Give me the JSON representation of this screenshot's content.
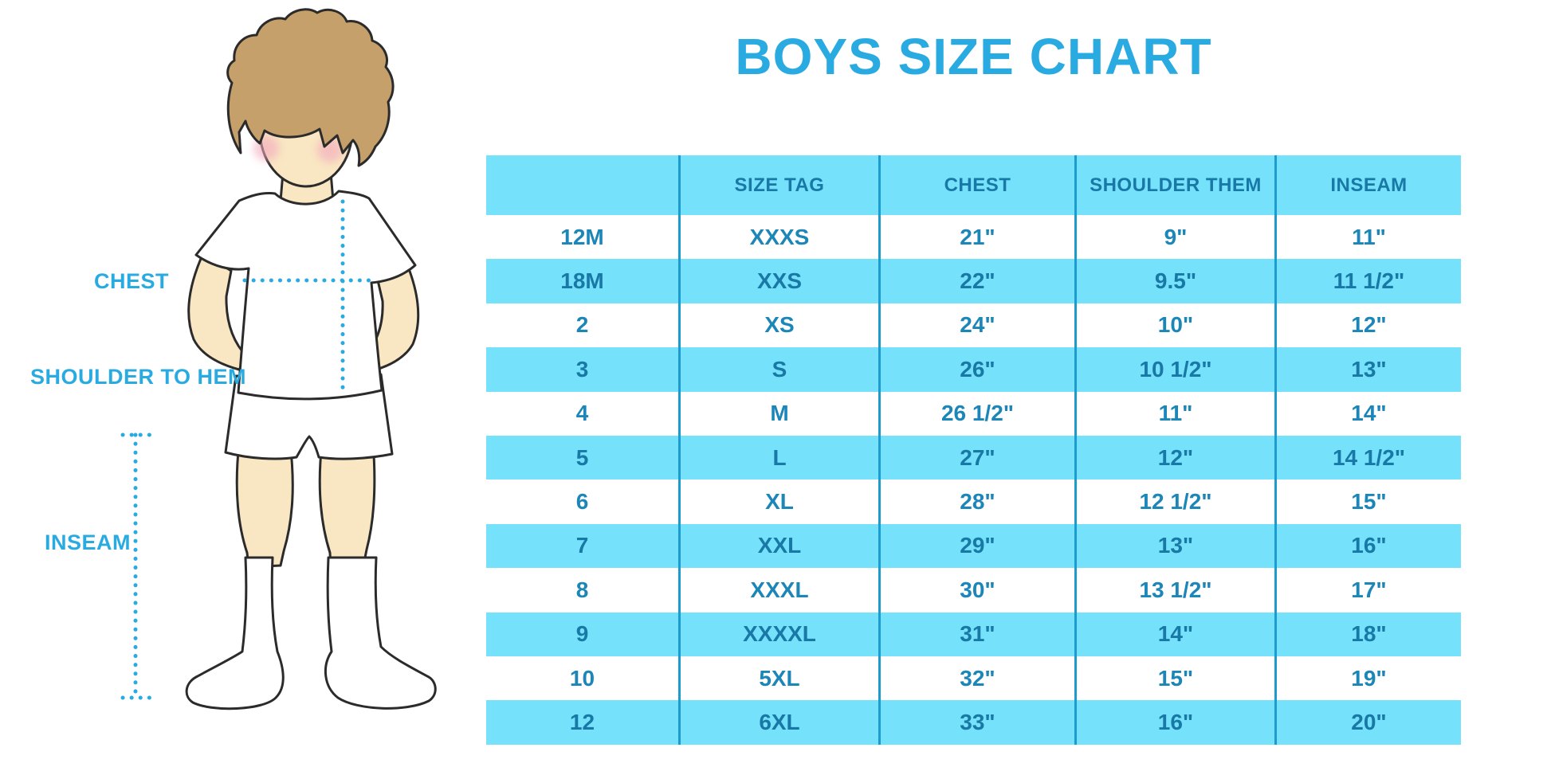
{
  "page_title": "BOYS SIZE CHART",
  "colors": {
    "accent": "#29ABE2",
    "stripe": "#76E1FB",
    "divider": "#1B9BCE",
    "cell-text": "#1C86B8",
    "header-text": "#1878A6",
    "outline": "#2B2B2B",
    "skin": "#F9E6C2",
    "hair": "#C5A06B",
    "cheek": "#F2A8BE"
  },
  "figure": {
    "chest_label": "CHEST",
    "shoulder_label": "SHOULDER TO HEM",
    "inseam_label": "INSEAM"
  },
  "chart_data": {
    "type": "table",
    "title": "BOYS SIZE CHART",
    "columns": [
      "",
      "SIZE TAG",
      "CHEST",
      "SHOULDER THEM",
      "INSEAM"
    ],
    "rows": [
      [
        "12M",
        "XXXS",
        "21\"",
        "9\"",
        "11\""
      ],
      [
        "18M",
        "XXS",
        "22\"",
        "9.5\"",
        "11 1/2\""
      ],
      [
        "2",
        "XS",
        "24\"",
        "10\"",
        "12\""
      ],
      [
        "3",
        "S",
        "26\"",
        "10 1/2\"",
        "13\""
      ],
      [
        "4",
        "M",
        "26 1/2\"",
        "11\"",
        "14\""
      ],
      [
        "5",
        "L",
        "27\"",
        "12\"",
        "14 1/2\""
      ],
      [
        "6",
        "XL",
        "28\"",
        "12 1/2\"",
        "15\""
      ],
      [
        "7",
        "XXL",
        "29\"",
        "13\"",
        "16\""
      ],
      [
        "8",
        "XXXL",
        "30\"",
        "13 1/2\"",
        "17\""
      ],
      [
        "9",
        "XXXXL",
        "31\"",
        "14\"",
        "18\""
      ],
      [
        "10",
        "5XL",
        "32\"",
        "15\"",
        "19\""
      ],
      [
        "12",
        "6XL",
        "33\"",
        "16\"",
        "20\""
      ]
    ],
    "layout": {
      "striping": "header and alternate data rows light blue, starting with row 18M",
      "column_dividers": true,
      "row_dividers": false
    }
  }
}
